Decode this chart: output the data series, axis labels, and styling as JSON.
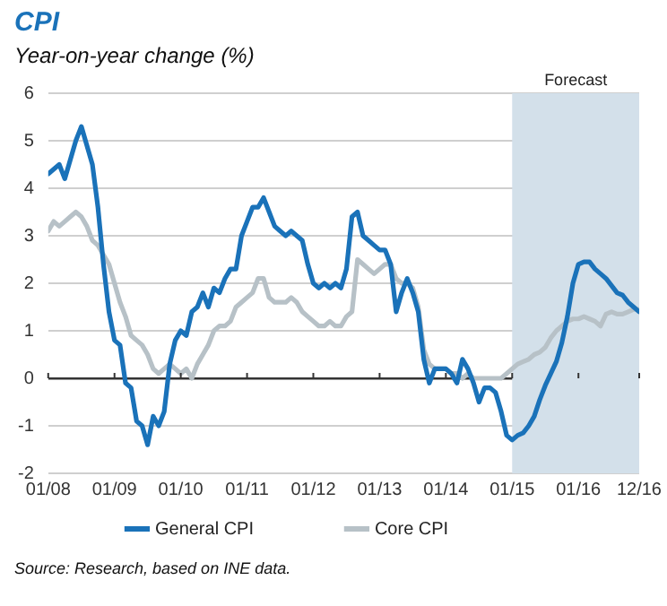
{
  "chart_data": {
    "type": "line",
    "title": "CPI",
    "subtitle": "Year-on-year change (%)",
    "annotations": [
      "Source: Research, based on INE data."
    ],
    "x": [
      "2008-01",
      "2008-02",
      "2008-03",
      "2008-04",
      "2008-05",
      "2008-06",
      "2008-07",
      "2008-08",
      "2008-09",
      "2008-10",
      "2008-11",
      "2008-12",
      "2009-01",
      "2009-02",
      "2009-03",
      "2009-04",
      "2009-05",
      "2009-06",
      "2009-07",
      "2009-08",
      "2009-09",
      "2009-10",
      "2009-11",
      "2009-12",
      "2010-01",
      "2010-02",
      "2010-03",
      "2010-04",
      "2010-05",
      "2010-06",
      "2010-07",
      "2010-08",
      "2010-09",
      "2010-10",
      "2010-11",
      "2010-12",
      "2011-01",
      "2011-02",
      "2011-03",
      "2011-04",
      "2011-05",
      "2011-06",
      "2011-07",
      "2011-08",
      "2011-09",
      "2011-10",
      "2011-11",
      "2011-12",
      "2012-01",
      "2012-02",
      "2012-03",
      "2012-04",
      "2012-05",
      "2012-06",
      "2012-07",
      "2012-08",
      "2012-09",
      "2012-10",
      "2012-11",
      "2012-12",
      "2013-01",
      "2013-02",
      "2013-03",
      "2013-04",
      "2013-05",
      "2013-06",
      "2013-07",
      "2013-08",
      "2013-09",
      "2013-10",
      "2013-11",
      "2013-12",
      "2014-01",
      "2014-02",
      "2014-03",
      "2014-04",
      "2014-05",
      "2014-06",
      "2014-07",
      "2014-08",
      "2014-09",
      "2014-10",
      "2014-11",
      "2014-12",
      "2015-01",
      "2015-02",
      "2015-03",
      "2015-04",
      "2015-05",
      "2015-06",
      "2015-07",
      "2015-08",
      "2015-09",
      "2015-10",
      "2015-11",
      "2015-12",
      "2016-01",
      "2016-02",
      "2016-03",
      "2016-04",
      "2016-05",
      "2016-06",
      "2016-07",
      "2016-08",
      "2016-09",
      "2016-10",
      "2016-11",
      "2016-12"
    ],
    "series": [
      {
        "name": "General CPI",
        "color": "#1a72b9",
        "values": [
          4.3,
          4.4,
          4.5,
          4.2,
          4.6,
          5.0,
          5.3,
          4.9,
          4.5,
          3.6,
          2.4,
          1.4,
          0.8,
          0.7,
          -0.1,
          -0.2,
          -0.9,
          -1.0,
          -1.4,
          -0.8,
          -1.0,
          -0.7,
          0.3,
          0.8,
          1.0,
          0.9,
          1.4,
          1.5,
          1.8,
          1.5,
          1.9,
          1.8,
          2.1,
          2.3,
          2.3,
          3.0,
          3.3,
          3.6,
          3.6,
          3.8,
          3.5,
          3.2,
          3.1,
          3.0,
          3.1,
          3.0,
          2.9,
          2.4,
          2.0,
          1.9,
          2.0,
          1.9,
          2.0,
          1.9,
          2.3,
          3.4,
          3.5,
          3.0,
          2.9,
          2.8,
          2.7,
          2.7,
          2.4,
          1.4,
          1.8,
          2.1,
          1.8,
          1.4,
          0.4,
          -0.1,
          0.2,
          0.2,
          0.2,
          0.1,
          -0.1,
          0.4,
          0.2,
          -0.1,
          -0.5,
          -0.2,
          -0.2,
          -0.3,
          -0.7,
          -1.2,
          -1.3,
          -1.2,
          -1.15,
          -1.0,
          -0.8,
          -0.45,
          -0.15,
          0.1,
          0.35,
          0.75,
          1.3,
          2.0,
          2.4,
          2.45,
          2.45,
          2.3,
          2.2,
          2.1,
          1.95,
          1.8,
          1.75,
          1.6,
          1.5,
          1.4
        ]
      },
      {
        "name": "Core CPI",
        "color": "#b7c1c7",
        "values": [
          3.1,
          3.3,
          3.2,
          3.3,
          3.4,
          3.5,
          3.4,
          3.2,
          2.9,
          2.8,
          2.6,
          2.4,
          2.0,
          1.6,
          1.3,
          0.9,
          0.8,
          0.7,
          0.5,
          0.2,
          0.1,
          0.2,
          0.3,
          0.2,
          0.1,
          0.2,
          0.0,
          0.3,
          0.5,
          0.7,
          1.0,
          1.1,
          1.1,
          1.2,
          1.5,
          1.6,
          1.7,
          1.8,
          2.1,
          2.1,
          1.7,
          1.6,
          1.6,
          1.6,
          1.7,
          1.6,
          1.4,
          1.3,
          1.2,
          1.1,
          1.1,
          1.2,
          1.1,
          1.1,
          1.3,
          1.4,
          2.5,
          2.4,
          2.3,
          2.2,
          2.3,
          2.4,
          2.4,
          2.1,
          2.0,
          2.0,
          1.9,
          1.5,
          0.6,
          0.3,
          0.2,
          0.2,
          0.2,
          0.1,
          0.1,
          0.0,
          0.1,
          0.0,
          0.0,
          0.0,
          0.0,
          0.0,
          0.0,
          0.1,
          0.2,
          0.3,
          0.35,
          0.4,
          0.5,
          0.55,
          0.65,
          0.85,
          1.0,
          1.1,
          1.2,
          1.25,
          1.25,
          1.3,
          1.25,
          1.2,
          1.1,
          1.35,
          1.4,
          1.35,
          1.35,
          1.4,
          1.45,
          1.45
        ]
      }
    ],
    "xlim": [
      "2008-01",
      "2016-12"
    ],
    "xticks": [
      {
        "value": "2008-01",
        "label": "01/08"
      },
      {
        "value": "2009-01",
        "label": "01/09"
      },
      {
        "value": "2010-01",
        "label": "01/10"
      },
      {
        "value": "2011-01",
        "label": "01/11"
      },
      {
        "value": "2012-01",
        "label": "01/12"
      },
      {
        "value": "2013-01",
        "label": "01/13"
      },
      {
        "value": "2014-01",
        "label": "01/14"
      },
      {
        "value": "2015-01",
        "label": "01/15"
      },
      {
        "value": "2016-01",
        "label": "01/16"
      },
      {
        "value": "2016-12",
        "label": "12/16"
      }
    ],
    "ylim": [
      -2,
      6
    ],
    "yticks": [
      -2,
      -1,
      0,
      1,
      2,
      3,
      4,
      5,
      6
    ],
    "bands": [
      {
        "axis": "x",
        "from": "2015-01",
        "to": "2016-12",
        "label": "Forecast",
        "color": "#d3e0ea"
      }
    ],
    "grid": "y",
    "legend": "bottom",
    "marker": "none",
    "line_style": "solid"
  }
}
